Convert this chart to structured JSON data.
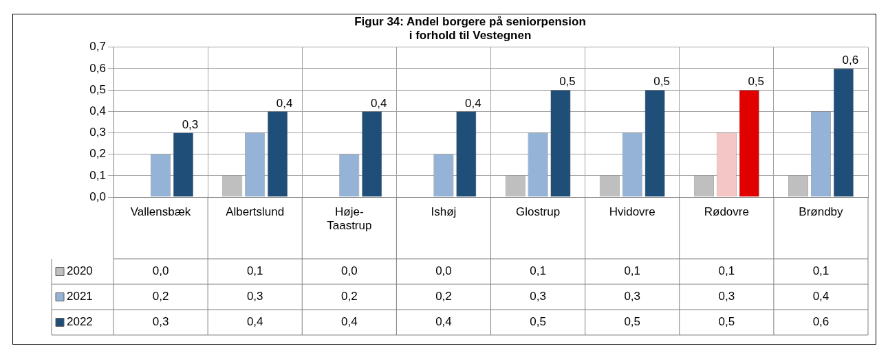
{
  "chart_data": {
    "type": "bar",
    "title": "Figur 34: Andel borgere på seniorpension\ni forhold til Vestegnen",
    "categories": [
      "Vallensbæk",
      "Albertslund",
      "Høje-Taastrup",
      "Ishøj",
      "Glostrup",
      "Hvidovre",
      "Rødovre",
      "Brøndby"
    ],
    "series": [
      {
        "name": "2020",
        "color": "#bfbfbf",
        "values": [
          0.0,
          0.1,
          0.0,
          0.0,
          0.1,
          0.1,
          0.1,
          0.1
        ],
        "value_labels": [
          "0,0",
          "0,1",
          "0,0",
          "0,0",
          "0,1",
          "0,1",
          "0,1",
          "0,1"
        ]
      },
      {
        "name": "2021",
        "color": "#95b3d7",
        "colors": [
          "#95b3d7",
          "#95b3d7",
          "#95b3d7",
          "#95b3d7",
          "#95b3d7",
          "#95b3d7",
          "#f4c6c6",
          "#95b3d7"
        ],
        "values": [
          0.2,
          0.3,
          0.2,
          0.2,
          0.3,
          0.3,
          0.3,
          0.4
        ],
        "value_labels": [
          "0,2",
          "0,3",
          "0,2",
          "0,2",
          "0,3",
          "0,3",
          "0,3",
          "0,4"
        ]
      },
      {
        "name": "2022",
        "color": "#1f4e79",
        "colors": [
          "#1f4e79",
          "#1f4e79",
          "#1f4e79",
          "#1f4e79",
          "#1f4e79",
          "#1f4e79",
          "#e00000",
          "#1f4e79"
        ],
        "values": [
          0.3,
          0.4,
          0.4,
          0.4,
          0.5,
          0.5,
          0.5,
          0.6
        ],
        "value_labels": [
          "0,3",
          "0,4",
          "0,4",
          "0,4",
          "0,5",
          "0,5",
          "0,5",
          "0,6"
        ]
      }
    ],
    "annotations": [
      "0,3",
      "0,4",
      "0,4",
      "0,4",
      "0,5",
      "0,5",
      "0,5",
      "0,6"
    ],
    "ylim": [
      0,
      0.7
    ],
    "yticks": [
      {
        "value": 0,
        "label": "0,0"
      },
      {
        "value": 0.1,
        "label": "0,1"
      },
      {
        "value": 0.2,
        "label": "0,2"
      },
      {
        "value": 0.3,
        "label": "0,3"
      },
      {
        "value": 0.4,
        "label": "0,4"
      },
      {
        "value": 0.5,
        "label": "0,5"
      },
      {
        "value": 0.6,
        "label": "0,6"
      },
      {
        "value": 0.7,
        "label": "0,7"
      }
    ],
    "grid": true,
    "legend": "bottom left"
  }
}
